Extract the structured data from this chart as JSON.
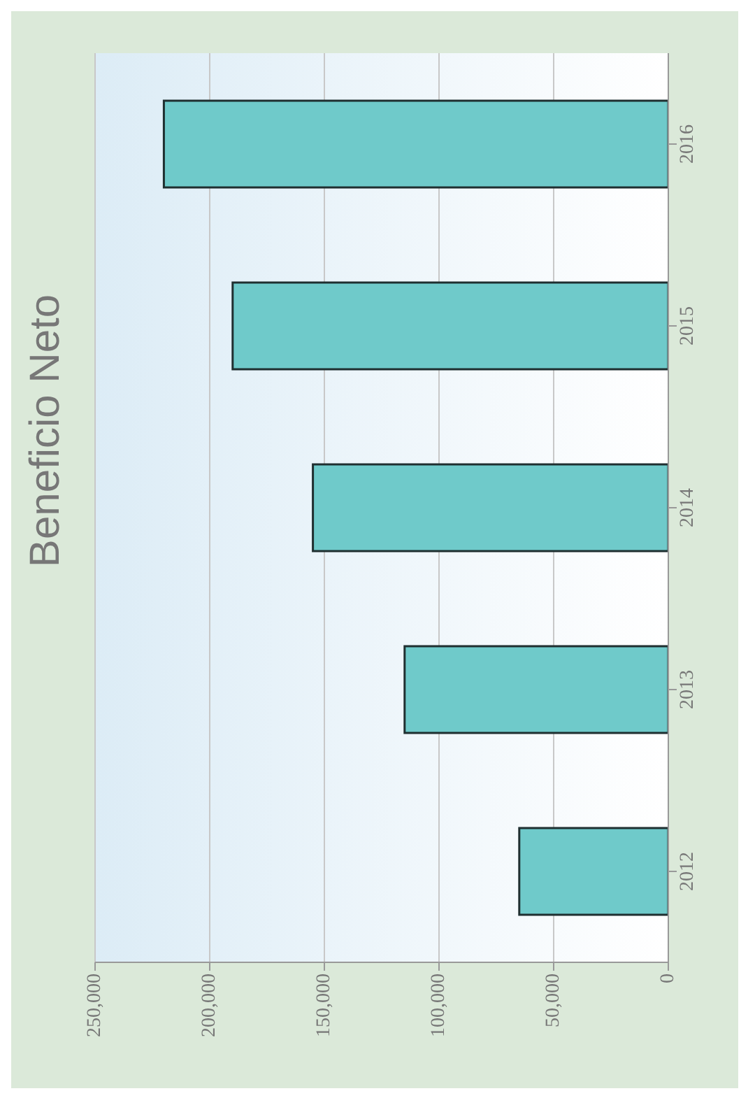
{
  "chart_data": {
    "type": "bar",
    "title": "Beneficio Neto",
    "orientation": "horizontal",
    "categories": [
      "2016",
      "2015",
      "2014",
      "2013",
      "2012"
    ],
    "values": [
      220000,
      190000,
      155000,
      115000,
      65000
    ],
    "color": "#6fcaca",
    "xlim": [
      250000,
      0
    ],
    "xticks": [
      0,
      {
        "value": 50000,
        "label": "50,000"
      },
      {
        "value": 100000,
        "label": "100,000"
      },
      {
        "value": 150000,
        "label": "150,000"
      },
      {
        "value": 200000,
        "label": "200,000"
      },
      {
        "value": 250000,
        "label": "250,000"
      }
    ],
    "grid": "x"
  }
}
